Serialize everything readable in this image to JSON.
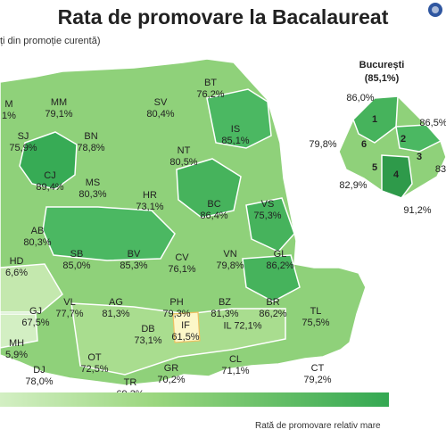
{
  "title": "Rata de promovare la Bacalaureat",
  "subtitle": "ți din promoție curentă)",
  "legend": {
    "high_label": "Rată de promovare relativ mare"
  },
  "colors": {
    "low": "#d3efc3",
    "mid": "#8fd17a",
    "high": "#37ab55",
    "highlight": "#fcf7c8",
    "border": "#ffffff",
    "logo": "#2f56a0"
  },
  "counties": [
    {
      "code": "M",
      "value": "1%"
    },
    {
      "code": "MM",
      "value": "79,1%"
    },
    {
      "code": "BT",
      "value": "76,2%"
    },
    {
      "code": "SV",
      "value": "80,4%"
    },
    {
      "code": "SJ",
      "value": "75,9%"
    },
    {
      "code": "BN",
      "value": "78,8%"
    },
    {
      "code": "IS",
      "value": "85,1%"
    },
    {
      "code": "NT",
      "value": "80,5%"
    },
    {
      "code": "CJ",
      "value": "89,4%"
    },
    {
      "code": "MS",
      "value": "80,3%"
    },
    {
      "code": "HR",
      "value": "73,1%"
    },
    {
      "code": "BC",
      "value": "86,4%"
    },
    {
      "code": "VS",
      "value": "75,3%"
    },
    {
      "code": "AB",
      "value": "80,3%"
    },
    {
      "code": "HD",
      "value": "6,6%"
    },
    {
      "code": "SB",
      "value": "85,0%"
    },
    {
      "code": "BV",
      "value": "85,3%"
    },
    {
      "code": "CV",
      "value": "76,1%"
    },
    {
      "code": "VN",
      "value": "79,8%"
    },
    {
      "code": "GL",
      "value": "86,2%"
    },
    {
      "code": "GJ",
      "value": "67,5%"
    },
    {
      "code": "VL",
      "value": "77,7%"
    },
    {
      "code": "AG",
      "value": "81,3%"
    },
    {
      "code": "PH",
      "value": "79,3%"
    },
    {
      "code": "BZ",
      "value": "81,3%"
    },
    {
      "code": "BR",
      "value": "86,2%"
    },
    {
      "code": "TL",
      "value": "75,5%"
    },
    {
      "code": "DB",
      "value": "73,1%"
    },
    {
      "code": "MH",
      "value": "5,9%"
    },
    {
      "code": "OT",
      "value": "72,5%"
    },
    {
      "code": "GR",
      "value": "70,2%"
    },
    {
      "code": "IL",
      "value": "72,1%"
    },
    {
      "code": "IF",
      "value": "61,5%"
    },
    {
      "code": "CL",
      "value": "71,1%"
    },
    {
      "code": "DJ",
      "value": "78,0%"
    },
    {
      "code": "TR",
      "value": "69,3%"
    },
    {
      "code": "CT",
      "value": "79,2%"
    }
  ],
  "bucharest": {
    "name": "București",
    "total": "(85,1%)",
    "sectors": [
      {
        "num": "1",
        "value": "86,0%"
      },
      {
        "num": "2",
        "value": "86,5%"
      },
      {
        "num": "3",
        "value": "83"
      },
      {
        "num": "4",
        "value": "91,2%"
      },
      {
        "num": "5",
        "value": "82,9%"
      },
      {
        "num": "6",
        "value": "79,8%"
      }
    ]
  }
}
